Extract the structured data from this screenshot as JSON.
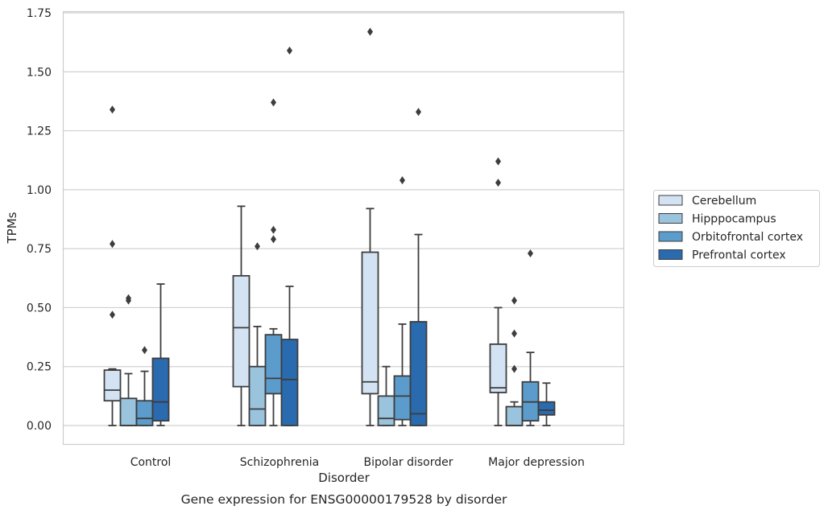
{
  "chart_data": {
    "type": "box",
    "title": "Gene expression for ENSG00000179528 by disorder",
    "xlabel": "Disorder",
    "ylabel": "TPMs",
    "ylim": [
      -0.08,
      1.75
    ],
    "yticks": [
      0.0,
      0.25,
      0.5,
      0.75,
      1.0,
      1.25,
      1.5,
      1.75
    ],
    "ytick_labels": [
      "0.00",
      "0.25",
      "0.50",
      "0.75",
      "1.00",
      "1.25",
      "1.50",
      "1.75"
    ],
    "grid": "horizontal",
    "legend_position": "outside-right",
    "categories": [
      "Control",
      "Schizophrenia",
      "Bipolar disorder",
      "Major depression"
    ],
    "series": [
      {
        "name": "Cerebellum",
        "color": "#d3e3f3",
        "boxes": [
          {
            "whislo": 0.0,
            "q1": 0.105,
            "med": 0.15,
            "q3": 0.235,
            "whishi": 0.24,
            "fliers": [
              1.34,
              0.77,
              0.47
            ]
          },
          {
            "whislo": 0.0,
            "q1": 0.165,
            "med": 0.415,
            "q3": 0.635,
            "whishi": 0.93,
            "fliers": []
          },
          {
            "whislo": 0.0,
            "q1": 0.135,
            "med": 0.185,
            "q3": 0.735,
            "whishi": 0.92,
            "fliers": [
              1.67
            ]
          },
          {
            "whislo": 0.0,
            "q1": 0.14,
            "med": 0.16,
            "q3": 0.345,
            "whishi": 0.5,
            "fliers": [
              1.12,
              1.03
            ]
          }
        ]
      },
      {
        "name": "Hipppocampus",
        "color": "#9ac3dd",
        "boxes": [
          {
            "whislo": 0.0,
            "q1": 0.0,
            "med": 0.0,
            "q3": 0.115,
            "whishi": 0.22,
            "fliers": [
              0.54,
              0.53
            ]
          },
          {
            "whislo": 0.0,
            "q1": 0.0,
            "med": 0.07,
            "q3": 0.25,
            "whishi": 0.42,
            "fliers": [
              0.76
            ]
          },
          {
            "whislo": 0.0,
            "q1": 0.0,
            "med": 0.03,
            "q3": 0.125,
            "whishi": 0.25,
            "fliers": []
          },
          {
            "whislo": 0.0,
            "q1": 0.0,
            "med": 0.0,
            "q3": 0.08,
            "whishi": 0.1,
            "fliers": [
              0.53,
              0.39,
              0.24
            ]
          }
        ]
      },
      {
        "name": "Orbitofrontal cortex",
        "color": "#5b9ccc",
        "boxes": [
          {
            "whislo": 0.0,
            "q1": 0.0,
            "med": 0.03,
            "q3": 0.105,
            "whishi": 0.23,
            "fliers": [
              0.32
            ]
          },
          {
            "whislo": 0.0,
            "q1": 0.135,
            "med": 0.2,
            "q3": 0.385,
            "whishi": 0.41,
            "fliers": [
              1.37,
              0.83,
              0.79
            ]
          },
          {
            "whislo": 0.0,
            "q1": 0.025,
            "med": 0.125,
            "q3": 0.21,
            "whishi": 0.43,
            "fliers": [
              1.04
            ]
          },
          {
            "whislo": 0.0,
            "q1": 0.02,
            "med": 0.1,
            "q3": 0.185,
            "whishi": 0.31,
            "fliers": [
              0.73
            ]
          }
        ]
      },
      {
        "name": "Prefrontal cortex",
        "color": "#2a6aaf",
        "boxes": [
          {
            "whislo": 0.0,
            "q1": 0.02,
            "med": 0.1,
            "q3": 0.285,
            "whishi": 0.6,
            "fliers": []
          },
          {
            "whislo": 0.0,
            "q1": 0.0,
            "med": 0.195,
            "q3": 0.365,
            "whishi": 0.59,
            "fliers": [
              1.59
            ]
          },
          {
            "whislo": 0.0,
            "q1": 0.0,
            "med": 0.05,
            "q3": 0.44,
            "whishi": 0.81,
            "fliers": [
              1.33
            ]
          },
          {
            "whislo": 0.0,
            "q1": 0.045,
            "med": 0.065,
            "q3": 0.1,
            "whishi": 0.18,
            "fliers": []
          }
        ]
      }
    ]
  }
}
